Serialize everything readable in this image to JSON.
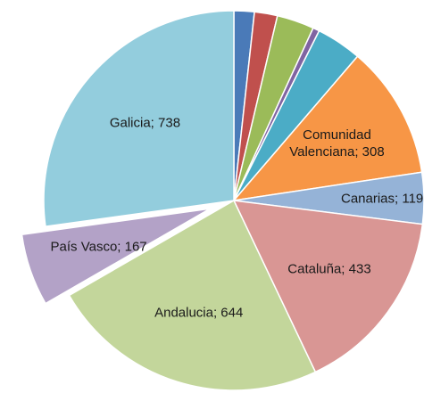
{
  "chart_data": {
    "type": "pie",
    "values": [
      47,
      53,
      86,
      15,
      105,
      308,
      119,
      433,
      644,
      167,
      738
    ],
    "value_labels": [
      null,
      null,
      null,
      null,
      null,
      "Comunidad Valenciana; 308",
      "Canarias; 119",
      "Cataluña; 433",
      "Andalucia; 644",
      "País Vasco; 167",
      "Galicia; 738"
    ],
    "colors": [
      "#4a7ab8",
      "#c0504d",
      "#9bbb59",
      "#8064a2",
      "#4bacc6",
      "#f79646",
      "#95b3d7",
      "#d99694",
      "#c3d69b",
      "#b3a2c7",
      "#93cddd"
    ],
    "exploded": [
      false,
      false,
      false,
      false,
      false,
      false,
      false,
      false,
      false,
      true,
      false
    ]
  }
}
